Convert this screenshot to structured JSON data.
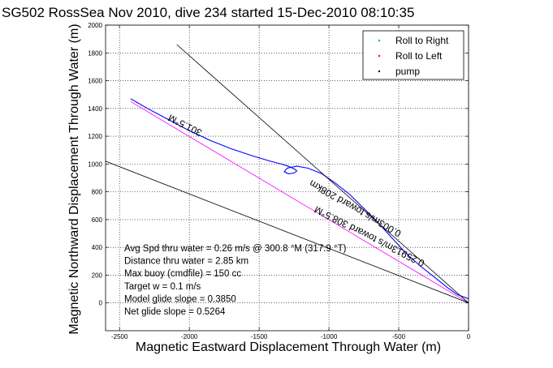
{
  "chart_data": {
    "type": "line",
    "title": "SG502 RossSea Nov 2010, dive 234 started 15-Dec-2010 08:10:35",
    "xlabel": "Magnetic Eastward Displacement Through Water (m)",
    "ylabel": "Magnetic Northward Displacement Through Water (m)",
    "xlim": [
      -2600,
      0
    ],
    "ylim": [
      -200,
      2000
    ],
    "xticks": [
      -2500,
      -2000,
      -1500,
      -1000,
      -500,
      0
    ],
    "yticks": [
      0,
      200,
      400,
      600,
      800,
      1000,
      1200,
      1400,
      1600,
      1800,
      2000
    ],
    "grid": true,
    "legend_position": "top-right",
    "legend": [
      {
        "label": "Roll to Right",
        "color": "#00cc00"
      },
      {
        "label": "Roll to Left",
        "color": "#ff0000"
      },
      {
        "label": "pump",
        "color": "#000000"
      }
    ],
    "series": [
      {
        "color": "#0000ff",
        "points": [
          [
            -2420,
            1470
          ],
          [
            -2300,
            1400
          ],
          [
            -2150,
            1320
          ],
          [
            -2000,
            1240
          ],
          [
            -1850,
            1170
          ],
          [
            -1700,
            1110
          ],
          [
            -1550,
            1060
          ],
          [
            -1420,
            1020
          ],
          [
            -1340,
            1000
          ],
          [
            -1280,
            980
          ],
          [
            -1240,
            960
          ],
          [
            -1230,
            950
          ],
          [
            -1250,
            935
          ],
          [
            -1290,
            930
          ],
          [
            -1320,
            945
          ],
          [
            -1300,
            970
          ],
          [
            -1230,
            985
          ],
          [
            -1150,
            970
          ],
          [
            -1050,
            930
          ],
          [
            -950,
            860
          ],
          [
            -850,
            780
          ],
          [
            -750,
            680
          ],
          [
            -650,
            580
          ],
          [
            -550,
            470
          ],
          [
            -450,
            360
          ],
          [
            -350,
            270
          ],
          [
            -250,
            190
          ],
          [
            -150,
            110
          ],
          [
            -80,
            60
          ],
          [
            0,
            30
          ]
        ]
      },
      {
        "color": "#ff00ff",
        "points": [
          [
            -2420,
            1450
          ],
          [
            0,
            0
          ]
        ]
      },
      {
        "color": "#000000",
        "points": [
          [
            -2600,
            1020
          ],
          [
            0,
            0
          ]
        ]
      },
      {
        "color": "#000000",
        "points": [
          [
            -2090,
            1860
          ],
          [
            0,
            0
          ]
        ]
      }
    ],
    "line_labels": [
      {
        "text": "301.5°M",
        "x": -2020,
        "y": 1300
      },
      {
        "text": "0.25913m/s toward 308.5°M",
        "x": -700,
        "y": 500
      },
      {
        "text": "0.003m/s toward 208km",
        "x": -800,
        "y": 700
      }
    ],
    "annotations": [
      "Avg Spd thru water = 0.26 m/s @ 300.8 °M (317.9 °T)",
      "Distance thru water = 2.85 km",
      "Max buoy (cmdfile) = 150 cc",
      "Target w = 0.1 m/s",
      "Model glide slope = 0.3850",
      "Net glide slope = 0.5264"
    ]
  }
}
